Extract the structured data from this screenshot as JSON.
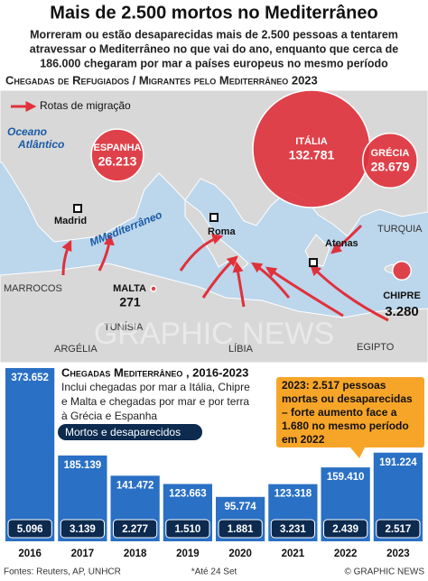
{
  "header": {
    "title": "Mais de 2.500 mortos no Mediterrâneo",
    "subtitle": [
      "Morreram ou estão desaparecidas mais de 2.500 pessoas a tentarem",
      "atravessar o Mediterrâneo no que vai do ano, enquanto que cerca de",
      "186.000 chegaram por mar a países europeus no mesmo período"
    ]
  },
  "chart_data": [
    {
      "type": "bubble-map",
      "title": "Chegadas de Refugiados / Migrantes pelo Mediterrâneo 2023",
      "legend": "Rotas de migração",
      "ocean": [
        "Oceano",
        "Atlântico"
      ],
      "sea": "MMediterrâneo",
      "countries": [
        "TURQUIA",
        "MARROCOS",
        "TUNÍSIA",
        "ARGÉLIA",
        "LÍBIA",
        "EGIPTO"
      ],
      "cities": [
        "Madrid",
        "Roma",
        "Atenas"
      ],
      "watermark": "GRAPHIC NEWS",
      "categories": [
        "ESPANHA",
        "ITÁLIA",
        "GRÉCIA",
        "MALTA",
        "CHIPRE"
      ],
      "values": [
        26213,
        132781,
        28679,
        271,
        3280
      ],
      "value_labels": [
        "26.213",
        "132.781",
        "28.679",
        "271",
        "3.280"
      ],
      "color": "#e0313b"
    },
    {
      "type": "bar",
      "title": "Chegadas Mediterrâneo , 2016-2023",
      "note": [
        "Inclui chegadas por mar a Itália, Chipre",
        "e Malta e chegadas por mar e por terra",
        "à Grécia e Espanha"
      ],
      "categories": [
        "2016",
        "2017",
        "2018",
        "2019",
        "2020",
        "2021",
        "2022",
        "2023"
      ],
      "values": [
        373652,
        185139,
        141472,
        123663,
        95774,
        123318,
        159410,
        191224
      ],
      "value_labels": [
        "373.652",
        "185.139",
        "141.472",
        "123.663",
        "95.774",
        "123.318",
        "159.410",
        "191.224"
      ],
      "color": "#2a70c4",
      "deaths": {
        "name": "Mortos e desaparecidos",
        "labels": [
          "5.096",
          "3.139",
          "2.277",
          "1.510",
          "1.881",
          "3.231",
          "2.439",
          "2.517"
        ],
        "color": "#0d2a4f"
      },
      "annotation": [
        "2023: 2.517 pessoas",
        "mortas ou desaparecidas",
        "– forte aumento face a",
        "1.680 no mesmo período",
        "em 2022"
      ]
    }
  ],
  "footer": {
    "sources": "Fontes: Reuters, AP, UNHCR",
    "note": "*Até 24 Set",
    "credit": "© GRAPHIC NEWS"
  }
}
